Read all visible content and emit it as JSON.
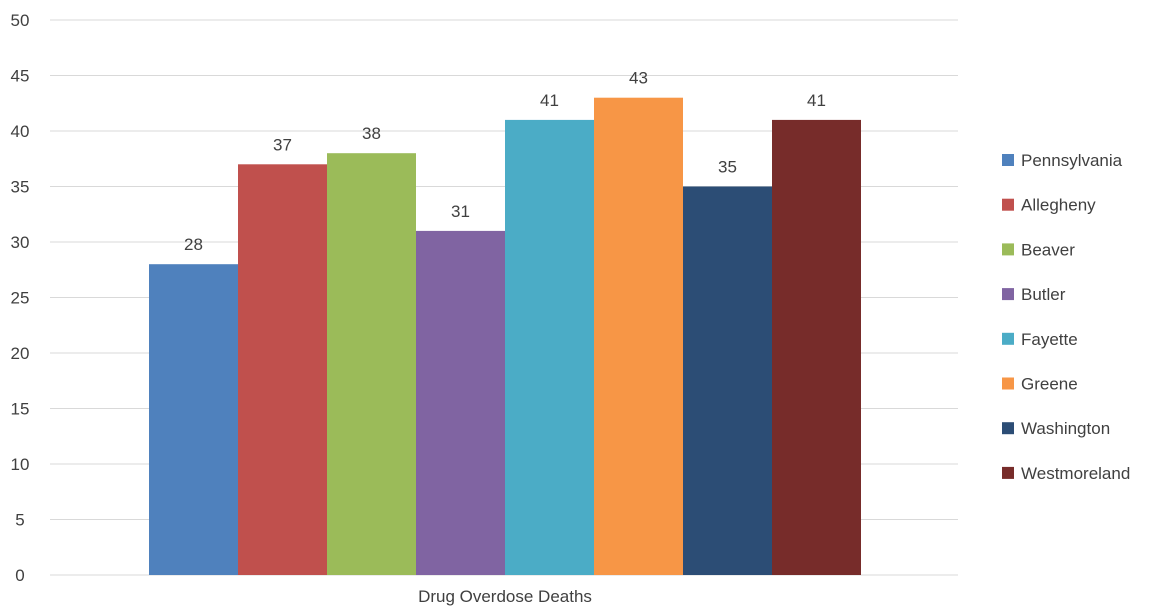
{
  "chart_data": {
    "type": "bar",
    "title": "",
    "xlabel": "",
    "ylabel": "",
    "categories": [
      "Drug Overdose Deaths"
    ],
    "ylim": [
      0,
      50
    ],
    "ytick_step": 5,
    "grid": true,
    "legend_position": "right",
    "show_data_labels": true,
    "series": [
      {
        "name": "Pennsylvania",
        "values": [
          28
        ],
        "color": "#4F81BD"
      },
      {
        "name": "Allegheny",
        "values": [
          37
        ],
        "color": "#C0504D"
      },
      {
        "name": "Beaver",
        "values": [
          38
        ],
        "color": "#9BBB59"
      },
      {
        "name": "Butler",
        "values": [
          31
        ],
        "color": "#8064A2"
      },
      {
        "name": "Fayette",
        "values": [
          41
        ],
        "color": "#4BACC6"
      },
      {
        "name": "Greene",
        "values": [
          43
        ],
        "color": "#F79646"
      },
      {
        "name": "Washington",
        "values": [
          35
        ],
        "color": "#2C4D75"
      },
      {
        "name": "Westmoreland",
        "values": [
          41
        ],
        "color": "#772C2A"
      }
    ]
  }
}
